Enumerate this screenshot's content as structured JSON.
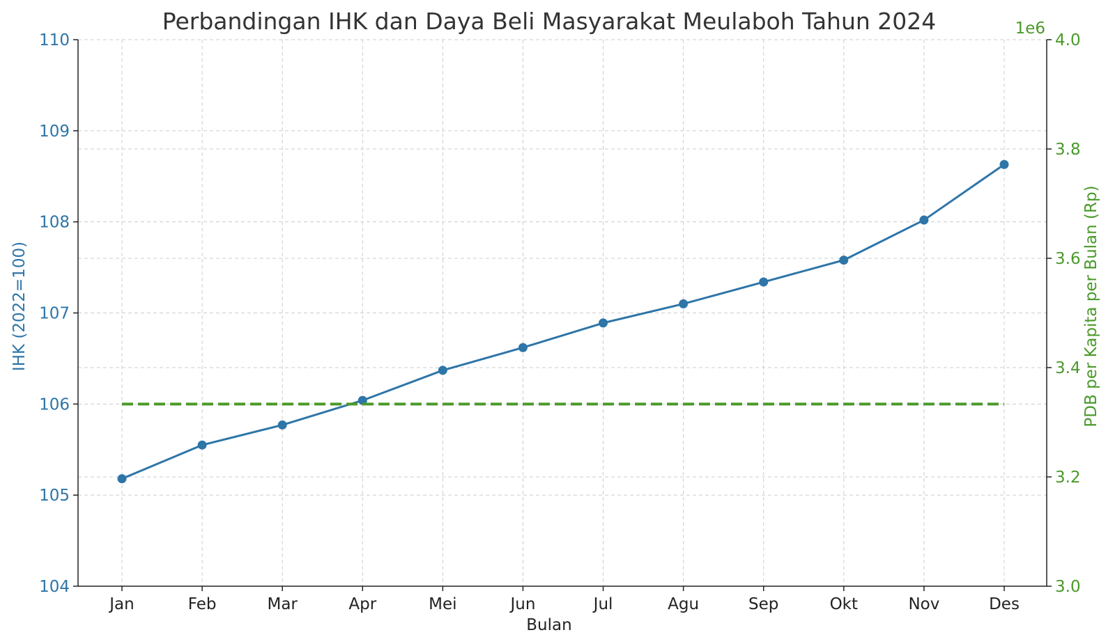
{
  "chart_data": {
    "type": "line",
    "title": "Perbandingan IHK dan Daya Beli Masyarakat Meulaboh Tahun 2024",
    "xlabel": "Bulan",
    "ylabel_left": "IHK (2022=100)",
    "ylabel_right": "PDB per Kapita per Bulan (Rp)",
    "right_axis_multiplier": "1e6",
    "categories": [
      "Jan",
      "Feb",
      "Mar",
      "Apr",
      "Mei",
      "Jun",
      "Jul",
      "Agu",
      "Sep",
      "Okt",
      "Nov",
      "Des"
    ],
    "ylim_left": [
      104,
      110
    ],
    "ylim_right": [
      3000000,
      4000000
    ],
    "yticks_left": [
      "104",
      "105",
      "106",
      "107",
      "108",
      "109",
      "110"
    ],
    "yticks_right": [
      "3.0",
      "3.2",
      "3.4",
      "3.6",
      "3.8",
      "4.0"
    ],
    "grid": true,
    "series": [
      {
        "axis": "left",
        "style": "solid-line-with-markers",
        "color": "#2e75a8",
        "values": [
          105.18,
          105.55,
          105.77,
          106.04,
          106.37,
          106.62,
          106.89,
          107.1,
          107.34,
          107.58,
          108.02,
          108.63
        ]
      },
      {
        "axis": "right",
        "style": "dashed-line",
        "color": "#4a9a2a",
        "values": [
          3333333,
          3333333,
          3333333,
          3333333,
          3333333,
          3333333,
          3333333,
          3333333,
          3333333,
          3333333,
          3333333,
          3333333
        ]
      }
    ],
    "colors": {
      "left_axis": "#2e75a8",
      "right_axis": "#4a9a2a",
      "grid": "#cccccc",
      "axis": "#222222"
    }
  }
}
